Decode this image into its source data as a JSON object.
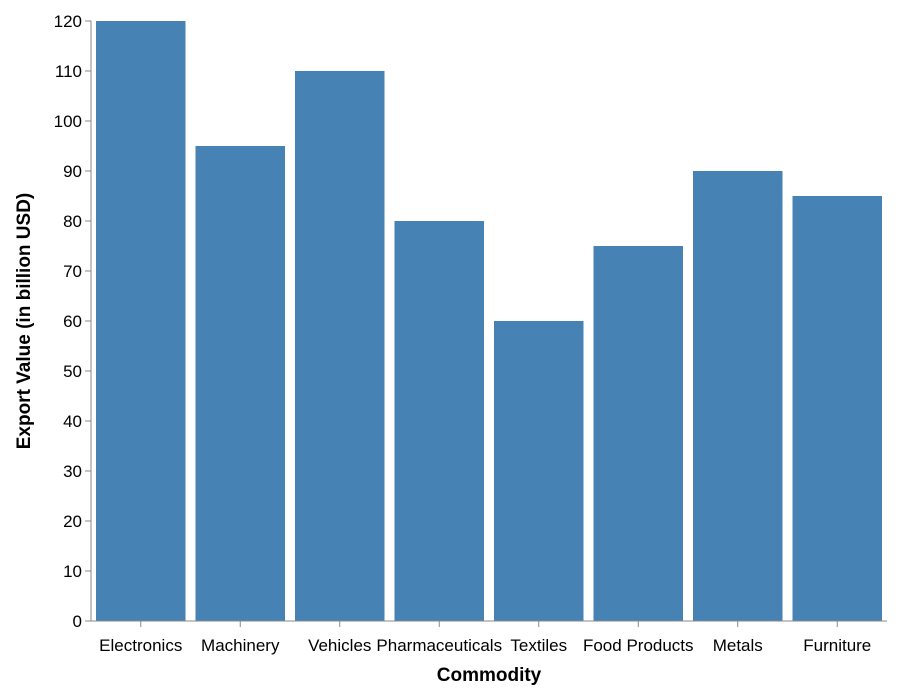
{
  "chart_data": {
    "type": "bar",
    "categories": [
      "Electronics",
      "Machinery",
      "Vehicles",
      "Pharmaceuticals",
      "Textiles",
      "Food Products",
      "Metals",
      "Furniture"
    ],
    "values": [
      120,
      95,
      110,
      80,
      60,
      75,
      90,
      85
    ],
    "xlabel": "Commodity",
    "ylabel": "Export Value (in billion USD)",
    "ylim": [
      0,
      120
    ],
    "yticks": [
      0,
      10,
      20,
      30,
      40,
      50,
      60,
      70,
      80,
      90,
      100,
      110,
      120
    ],
    "grid": false,
    "bar_color": "#4682b4"
  }
}
